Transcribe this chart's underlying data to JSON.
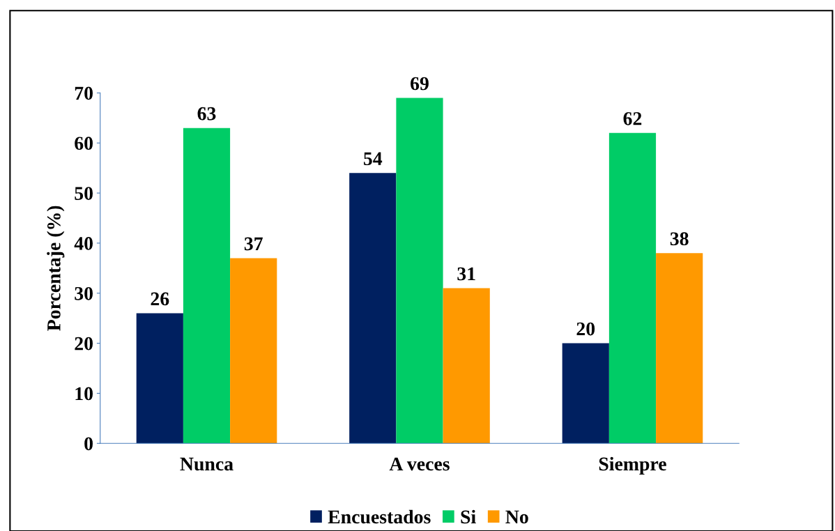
{
  "chart_data": {
    "type": "bar",
    "ylabel": "Porcentaje (%)",
    "categories": [
      "Nunca",
      "A veces",
      "Siempre"
    ],
    "series": [
      {
        "name": "Encuestados",
        "color": "#002060",
        "values": [
          26,
          54,
          20
        ]
      },
      {
        "name": "Si",
        "color": "#00cc66",
        "values": [
          63,
          69,
          62
        ]
      },
      {
        "name": "No",
        "color": "#ff9900",
        "values": [
          37,
          31,
          38
        ]
      }
    ],
    "ylim": [
      0,
      70
    ],
    "yticks": [
      0,
      10,
      20,
      30,
      40,
      50,
      60,
      70
    ],
    "grid": false,
    "legend": "bottom",
    "data_labels": true
  }
}
